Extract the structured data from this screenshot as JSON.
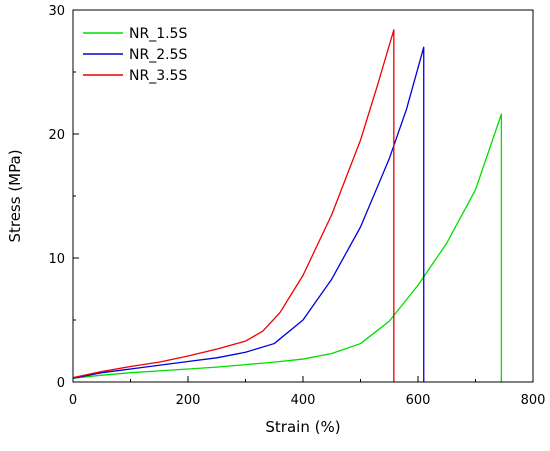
{
  "chart_data": {
    "type": "line",
    "title": "",
    "xlabel": "Strain (%)",
    "ylabel": "Stress (MPa)",
    "xlim": [
      0,
      800
    ],
    "ylim": [
      0,
      30
    ],
    "x_ticks": [
      0,
      200,
      400,
      600,
      800
    ],
    "y_ticks": [
      0,
      10,
      20,
      30
    ],
    "grid": false,
    "legend_position": "top-left",
    "series": [
      {
        "name": "NR_1.5S",
        "color": "#00dd00",
        "points": [
          [
            0,
            0.3
          ],
          [
            50,
            0.55
          ],
          [
            100,
            0.75
          ],
          [
            150,
            0.9
          ],
          [
            200,
            1.05
          ],
          [
            250,
            1.2
          ],
          [
            300,
            1.4
          ],
          [
            350,
            1.6
          ],
          [
            400,
            1.85
          ],
          [
            450,
            2.3
          ],
          [
            500,
            3.1
          ],
          [
            550,
            4.9
          ],
          [
            600,
            7.8
          ],
          [
            650,
            11.2
          ],
          [
            700,
            15.5
          ],
          [
            745,
            21.6
          ],
          [
            745,
            0
          ]
        ]
      },
      {
        "name": "NR_2.5S",
        "color": "#0000dd",
        "points": [
          [
            0,
            0.3
          ],
          [
            50,
            0.75
          ],
          [
            100,
            1.05
          ],
          [
            150,
            1.35
          ],
          [
            200,
            1.65
          ],
          [
            250,
            1.95
          ],
          [
            300,
            2.4
          ],
          [
            350,
            3.1
          ],
          [
            400,
            5.0
          ],
          [
            450,
            8.3
          ],
          [
            500,
            12.5
          ],
          [
            550,
            18.0
          ],
          [
            580,
            22.0
          ],
          [
            610,
            27.0
          ],
          [
            610,
            0
          ]
        ]
      },
      {
        "name": "NR_3.5S",
        "color": "#ee0000",
        "points": [
          [
            0,
            0.35
          ],
          [
            50,
            0.85
          ],
          [
            100,
            1.25
          ],
          [
            150,
            1.6
          ],
          [
            200,
            2.1
          ],
          [
            250,
            2.65
          ],
          [
            300,
            3.3
          ],
          [
            330,
            4.1
          ],
          [
            360,
            5.6
          ],
          [
            400,
            8.6
          ],
          [
            450,
            13.5
          ],
          [
            500,
            19.5
          ],
          [
            530,
            24.0
          ],
          [
            558,
            28.4
          ],
          [
            558,
            0
          ]
        ]
      }
    ]
  }
}
